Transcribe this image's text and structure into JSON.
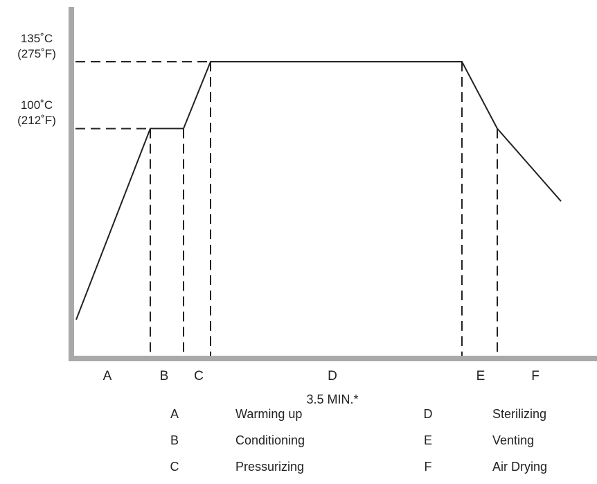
{
  "chart_data": {
    "type": "line",
    "title": "",
    "xlabel": "",
    "ylabel": "",
    "y_ticks": [
      {
        "value": 135,
        "line1": "135˚C",
        "line2": "(275˚F)"
      },
      {
        "value": 100,
        "line1": "100˚C",
        "line2": "(212˚F)"
      }
    ],
    "phases": [
      {
        "key": "A",
        "name": "Warming up"
      },
      {
        "key": "B",
        "name": "Conditioning"
      },
      {
        "key": "C",
        "name": "Pressurizing"
      },
      {
        "key": "D",
        "name": "Sterilizing"
      },
      {
        "key": "E",
        "name": "Venting"
      },
      {
        "key": "F",
        "name": "Air Drying"
      }
    ],
    "d_duration_note": "3.5 MIN.*",
    "profile_points_temp_c": [
      {
        "phase_boundary": "start",
        "temp": 0
      },
      {
        "phase_boundary": "A-B",
        "temp": 100
      },
      {
        "phase_boundary": "B-C",
        "temp": 100
      },
      {
        "phase_boundary": "C-D",
        "temp": 135
      },
      {
        "phase_boundary": "D-E",
        "temp": 135
      },
      {
        "phase_boundary": "E-F",
        "temp": 100
      },
      {
        "phase_boundary": "end",
        "temp": 62
      }
    ],
    "grid": false,
    "legend": "bottom"
  }
}
